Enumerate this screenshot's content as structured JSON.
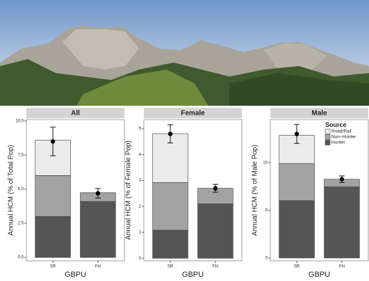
{
  "chart_data": [
    {
      "type": "stacked-bar",
      "title": "All",
      "y_label": "Annual HCM (% of Total Pop)",
      "x_label": "GBPU",
      "categories": [
        "SR",
        "FH"
      ],
      "series": [
        {
          "name": "Hunter",
          "color": "#555555",
          "values": [
            3.0,
            4.1
          ]
        },
        {
          "name": "Non−Hunter",
          "color": "#a3a3a3",
          "values": [
            3.0,
            0.65
          ]
        },
        {
          "name": "Road/Rail",
          "color": "#ebebeb",
          "values": [
            2.6,
            0.0
          ]
        }
      ],
      "point_values": [
        8.5,
        4.7
      ],
      "point_errors": [
        1.05,
        0.35
      ],
      "ylim": [
        -0.25,
        10.1
      ],
      "yticks": [
        {
          "value": 0,
          "label": "0.0"
        },
        2.5,
        {
          "value": 5,
          "label": "5.0"
        },
        7.5,
        {
          "value": 10,
          "label": "10.0"
        }
      ]
    },
    {
      "type": "stacked-bar",
      "title": "Female",
      "y_label": "Annual HCM (% of Female Pop)",
      "x_label": "GBPU",
      "categories": [
        "SR",
        "FH"
      ],
      "series": [
        {
          "name": "Hunter",
          "color": "#555555",
          "values": [
            1.08,
            2.1
          ]
        },
        {
          "name": "Non−Hunter",
          "color": "#a3a3a3",
          "values": [
            1.84,
            0.6
          ]
        },
        {
          "name": "Road/Rail",
          "color": "#ebebeb",
          "values": [
            1.89,
            0.0
          ]
        }
      ],
      "point_values": [
        4.8,
        2.7
      ],
      "point_errors": [
        0.35,
        0.15
      ],
      "ylim": [
        -0.1,
        5.35
      ],
      "yticks": [
        0,
        1,
        2,
        3,
        4,
        5
      ]
    },
    {
      "type": "stacked-bar",
      "title": "Male",
      "y_label": "Annual HCM (% of Male Pop)",
      "x_label": "GBPU",
      "categories": [
        "SR",
        "FH"
      ],
      "series": [
        {
          "name": "Hunter",
          "color": "#555555",
          "values": [
            6.0,
            7.45
          ]
        },
        {
          "name": "Non−Hunter",
          "color": "#a3a3a3",
          "values": [
            3.9,
            0.8
          ]
        },
        {
          "name": "Road/Rail",
          "color": "#ebebeb",
          "values": [
            2.95,
            0.0
          ]
        }
      ],
      "point_values": [
        13.0,
        8.25
      ],
      "point_errors": [
        1.0,
        0.35
      ],
      "ylim": [
        -0.3,
        14.5
      ],
      "yticks": [
        0,
        5,
        10
      ],
      "legend": "top-right",
      "legend_title": "Source"
    }
  ]
}
